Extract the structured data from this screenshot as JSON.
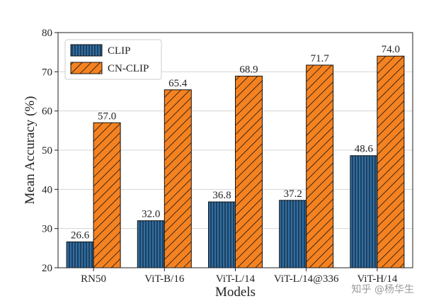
{
  "chart_data": {
    "type": "bar",
    "categories": [
      "RN50",
      "ViT-B/16",
      "ViT-L/14",
      "ViT-L/14@336",
      "ViT-H/14"
    ],
    "series": [
      {
        "name": "CLIP",
        "values": [
          26.6,
          32.0,
          36.8,
          37.2,
          48.6
        ],
        "labels": [
          "26.6",
          "32.0",
          "36.8",
          "37.2",
          "48.6"
        ],
        "color": "#2e6ea6",
        "hatch": "vertical"
      },
      {
        "name": "CN-CLIP",
        "values": [
          57.0,
          65.4,
          68.9,
          71.7,
          74.0
        ],
        "labels": [
          "57.0",
          "65.4",
          "68.9",
          "71.7",
          "74.0"
        ],
        "color": "#f58220",
        "hatch": "diagonal"
      }
    ],
    "xlabel": "Models",
    "ylabel": "Mean Accuracy (%)",
    "ylim": [
      20,
      80
    ],
    "yticks": [
      20,
      30,
      40,
      50,
      60,
      70,
      80
    ],
    "grid": "y",
    "legend": "top-left"
  },
  "watermark": "知乎 @杨华生"
}
